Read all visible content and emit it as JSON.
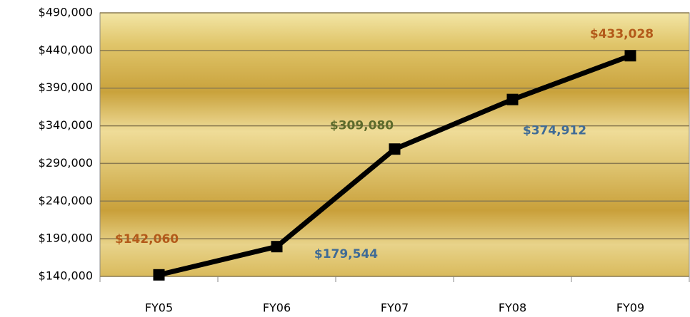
{
  "chart_data": {
    "type": "line",
    "categories": [
      "FY05",
      "FY06",
      "FY07",
      "FY08",
      "FY09"
    ],
    "series": [
      {
        "color": "#000000",
        "values": [
          142060,
          179544,
          309080,
          374912,
          433028
        ],
        "value_labels": [
          "$142,060",
          "$179,544",
          "$309,080",
          "$374,912",
          "$433,028"
        ],
        "value_label_colors": [
          "#b35a1a",
          "#3f6b96",
          "#5e6b2c",
          "#3f6b96",
          "#b35a1a"
        ]
      }
    ],
    "ylim": [
      140000,
      490000
    ],
    "yticks": [
      {
        "value": 140000,
        "label": "$140,000"
      },
      {
        "value": 190000,
        "label": "$190,000"
      },
      {
        "value": 240000,
        "label": "$240,000"
      },
      {
        "value": 290000,
        "label": "$290,000"
      },
      {
        "value": 340000,
        "label": "$340,000"
      },
      {
        "value": 390000,
        "label": "$390,000"
      },
      {
        "value": 440000,
        "label": "$440,000"
      },
      {
        "value": 490000,
        "label": "$490,000"
      }
    ],
    "grid": true
  }
}
